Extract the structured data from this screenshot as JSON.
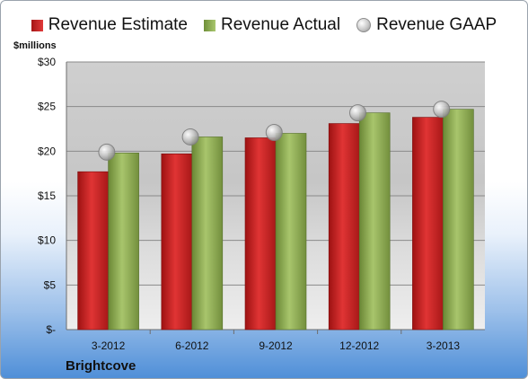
{
  "chart_data": {
    "type": "bar",
    "categories": [
      "3-2012",
      "6-2012",
      "9-2012",
      "12-2012",
      "3-2013"
    ],
    "series": [
      {
        "name": "Revenue Estimate",
        "kind": "bar",
        "color": "#c42222",
        "values": [
          17.7,
          19.7,
          21.5,
          23.1,
          23.8
        ]
      },
      {
        "name": "Revenue Actual",
        "kind": "bar",
        "color": "#8fae57",
        "values": [
          19.8,
          21.6,
          22.0,
          24.3,
          24.7
        ]
      },
      {
        "name": "Revenue GAAP",
        "kind": "marker",
        "color": "#bfbfbf",
        "values": [
          19.9,
          21.6,
          22.1,
          24.3,
          24.7
        ]
      }
    ],
    "y_ticks": [
      "$-",
      "$5",
      "$10",
      "$15",
      "$20",
      "$25",
      "$30"
    ],
    "y_tick_values": [
      0,
      5,
      10,
      15,
      20,
      25,
      30
    ],
    "ylim": [
      0,
      30
    ],
    "ylabel": "$millions",
    "grid": true,
    "legend_position": "top"
  },
  "footer": {
    "company": "Brightcove"
  }
}
